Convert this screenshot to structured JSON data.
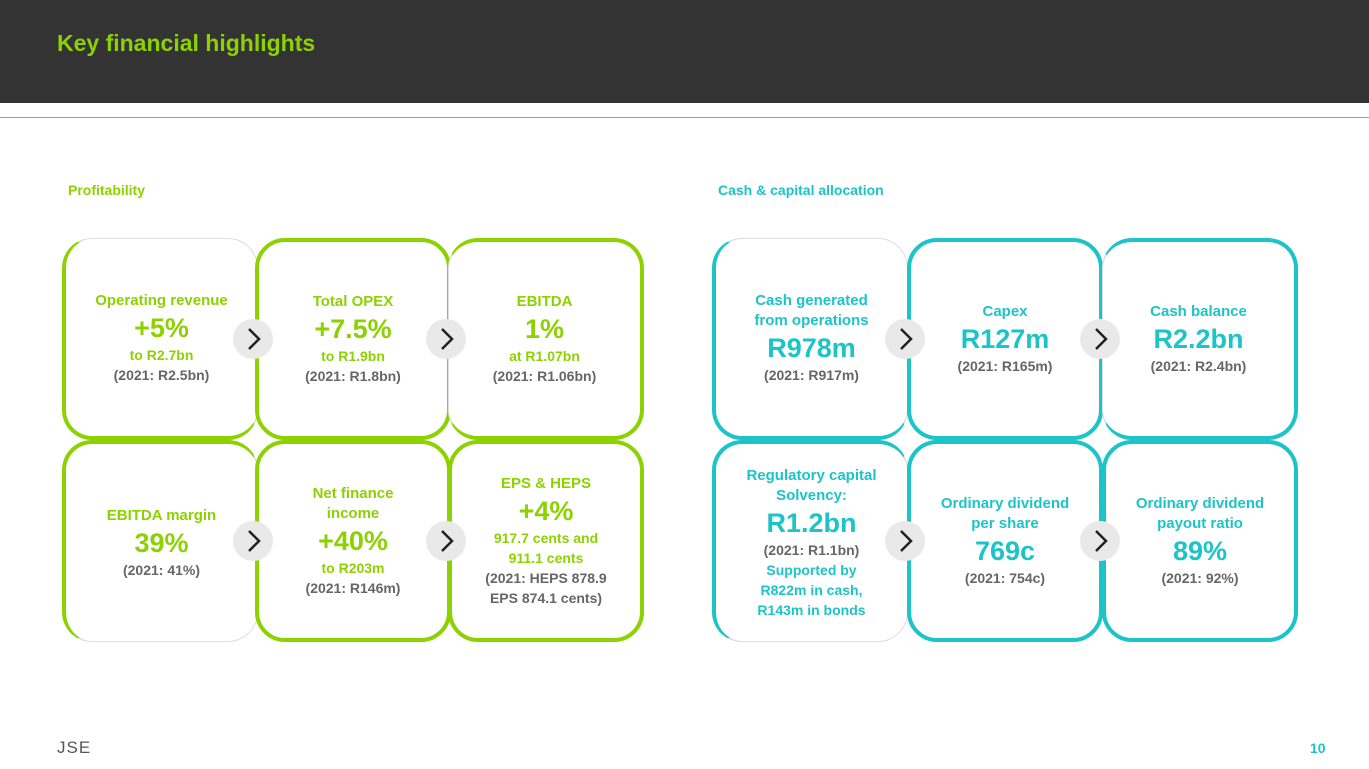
{
  "header": {
    "title": "Key financial highlights"
  },
  "sections": [
    {
      "title": "Profitability",
      "cards": [
        {
          "label": [
            "Operating revenue"
          ],
          "value": "+5%",
          "detail": [
            "to R2.7bn"
          ],
          "comparison": [
            "(2021: R2.5bn)"
          ]
        },
        {
          "label": [
            "Total OPEX"
          ],
          "value": "+7.5%",
          "detail": [
            "to R1.9bn"
          ],
          "comparison": [
            "(2021: R1.8bn)"
          ]
        },
        {
          "label": [
            "EBITDA"
          ],
          "value": "1%",
          "detail": [
            "at R1.07bn"
          ],
          "comparison": [
            "(2021: R1.06bn)"
          ]
        },
        {
          "label": [
            "EBITDA margin"
          ],
          "value": "39%",
          "comparison": [
            "(2021: 41%)"
          ]
        },
        {
          "label": [
            "Net finance",
            "income"
          ],
          "value": "+40%",
          "detail": [
            "to R203m"
          ],
          "comparison": [
            "(2021: R146m)"
          ]
        },
        {
          "label": [
            "EPS & HEPS"
          ],
          "value": "+4%",
          "detail": [
            "917.7 cents and",
            "911.1 cents"
          ],
          "comparison": [
            "(2021: HEPS 878.9",
            "EPS 874.1 cents)"
          ]
        }
      ]
    },
    {
      "title": "Cash & capital allocation",
      "cards": [
        {
          "label": [
            "Cash generated",
            "from operations"
          ],
          "value": "R978m",
          "comparison": [
            "(2021: R917m)"
          ]
        },
        {
          "label": [
            "Capex"
          ],
          "value": "R127m",
          "comparison": [
            "(2021: R165m)"
          ]
        },
        {
          "label": [
            "Cash balance"
          ],
          "value": "R2.2bn",
          "comparison": [
            "(2021: R2.4bn)"
          ]
        },
        {
          "label": [
            "Regulatory capital",
            "Solvency:"
          ],
          "value": "R1.2bn",
          "comparison": [
            "(2021: R1.1bn)"
          ],
          "note": [
            "Supported by",
            "R822m in cash,",
            "R143m in bonds"
          ]
        },
        {
          "label": [
            "Ordinary dividend",
            "per share"
          ],
          "value": "769c",
          "comparison": [
            "(2021: 754c)"
          ]
        },
        {
          "label": [
            "Ordinary dividend",
            "payout ratio"
          ],
          "value": "89%",
          "comparison": [
            "(2021: 92%)"
          ]
        }
      ]
    }
  ],
  "footer": {
    "logo": "JSE",
    "page": "10"
  }
}
